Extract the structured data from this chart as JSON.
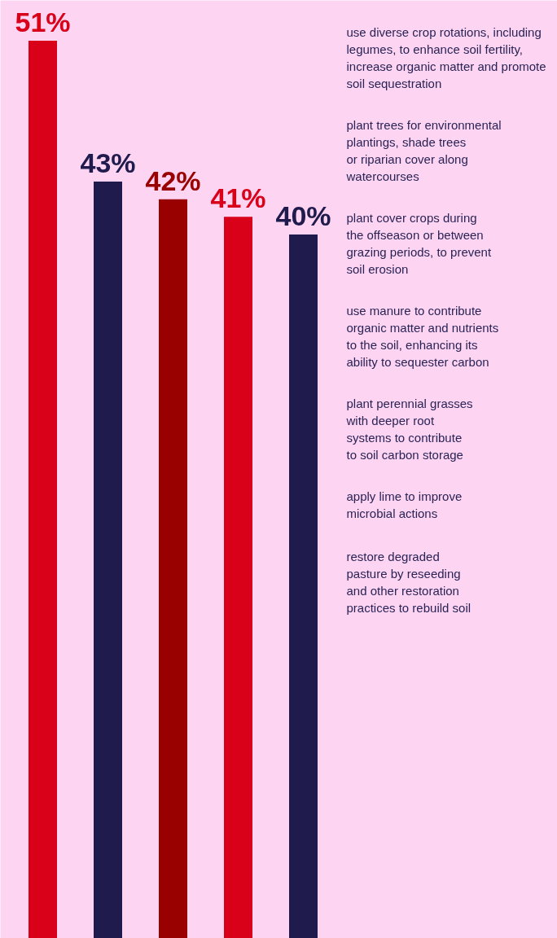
{
  "chart_data": {
    "type": "bar",
    "categories": [
      null,
      null,
      null,
      null,
      null
    ],
    "values": [
      51,
      43,
      42,
      41,
      40
    ],
    "colors": [
      "#d9001a",
      "#1f1b4c",
      "#990000",
      "#d9001a",
      "#1f1b4c"
    ],
    "value_labels": [
      "51%",
      "43%",
      "42%",
      "41%",
      "40%"
    ],
    "annotations": [
      "use diverse crop rotations, including\nlegumes, to enhance soil fertility,\nincrease organic matter and promote\nsoil sequestration",
      "plant trees for environmental\nplantings, shade trees\nor riparian cover along\nwatercourses",
      "plant cover crops during\nthe offseason or between\ngrazing periods, to prevent\nsoil erosion",
      "use manure to contribute\norganic matter and nutrients\nto the soil, enhancing its\nability to sequester carbon",
      "plant perennial grasses\nwith deeper root\nsystems to contribute\nto soil carbon storage",
      "apply lime to improve\nmicrobial actions",
      "restore degraded\npasture by reseeding\nand other restoration\npractices to rebuild soil"
    ]
  }
}
